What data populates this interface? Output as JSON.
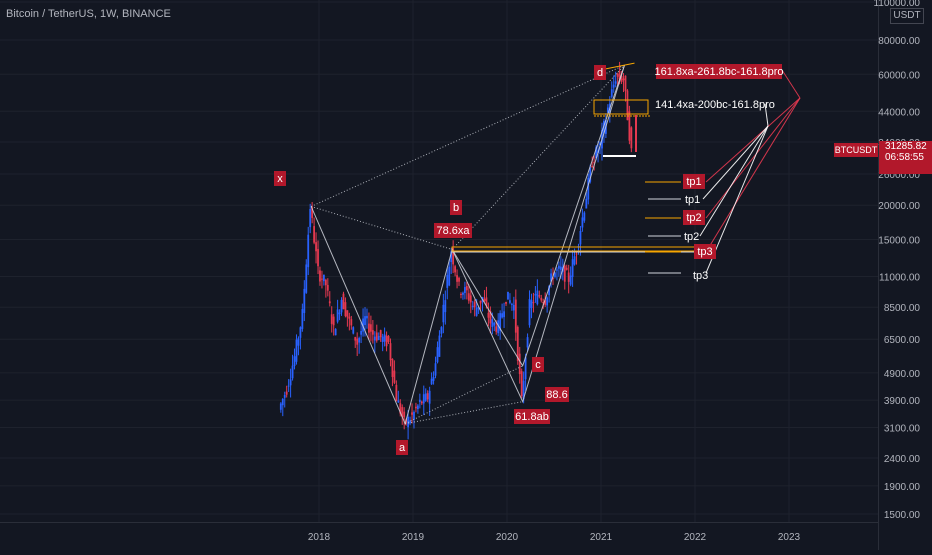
{
  "header": {
    "title": "Bitcoin / TetherUS, 1W, BINANCE"
  },
  "price_axis": {
    "currency": "USDT",
    "ticks": [
      "110000.00",
      "80000.00",
      "60000.00",
      "44000.00",
      "34000.00",
      "26000.00",
      "20000.00",
      "15000.00",
      "11000.00",
      "8500.00",
      "6500.00",
      "4900.00",
      "3900.00",
      "3100.00",
      "2400.00",
      "1900.00",
      "1500.00"
    ]
  },
  "time_axis": {
    "ticks": [
      "2018",
      "2019",
      "2020",
      "2021",
      "2022",
      "2023"
    ]
  },
  "current_price": {
    "symbol": "BTCUSDT",
    "price": "31285.82",
    "countdown": "06:58:55"
  },
  "colors": {
    "background": "#131722",
    "up": "#2962ff",
    "down": "#e53950",
    "label_bg": "#b2182b",
    "orange": "#f7a600",
    "grid": "#1e222d"
  },
  "pattern_points": {
    "x": "x",
    "a": "a",
    "b": "b",
    "c": "c",
    "d": "d",
    "b_ratio": "78.6xa",
    "c_ratio": "61.8ab",
    "c_ratio2": "88.6",
    "d_red_label": "161.8xa-261.8bc-161.8pro",
    "d_white_label": "141.4xa-200bc-161.8pro"
  },
  "targets": {
    "red": [
      "tp1",
      "tp2",
      "tp3"
    ],
    "white": [
      "tp1",
      "tp2",
      "tp3"
    ]
  },
  "chart_data": {
    "type": "candlestick",
    "title": "Bitcoin / TetherUS, 1W, BINANCE",
    "scale": "log",
    "ylim": [
      1300,
      115000
    ],
    "xlim": [
      "2017-07",
      "2023-06"
    ],
    "x_ticks": [
      "2018",
      "2019",
      "2020",
      "2021",
      "2022",
      "2023"
    ],
    "y_ticks": [
      1500,
      1900,
      2400,
      3100,
      3900,
      4900,
      6500,
      8500,
      11000,
      15000,
      20000,
      26000,
      34000,
      44000,
      60000,
      80000,
      110000
    ],
    "price_path": [
      [
        "2017-08",
        3600
      ],
      [
        "2017-09",
        4300
      ],
      [
        "2017-10",
        5600
      ],
      [
        "2017-11",
        8000
      ],
      [
        "2017-12",
        19800
      ],
      [
        "2018-01",
        11500
      ],
      [
        "2018-02",
        10300
      ],
      [
        "2018-03",
        7000
      ],
      [
        "2018-04",
        9200
      ],
      [
        "2018-05",
        7500
      ],
      [
        "2018-06",
        6300
      ],
      [
        "2018-07",
        7700
      ],
      [
        "2018-08",
        6800
      ],
      [
        "2018-09",
        6600
      ],
      [
        "2018-10",
        6300
      ],
      [
        "2018-11",
        4000
      ],
      [
        "2018-12",
        3200
      ],
      [
        "2019-01",
        3400
      ],
      [
        "2019-02",
        3800
      ],
      [
        "2019-03",
        4000
      ],
      [
        "2019-04",
        5300
      ],
      [
        "2019-05",
        8500
      ],
      [
        "2019-06",
        13800
      ],
      [
        "2019-07",
        10000
      ],
      [
        "2019-08",
        9600
      ],
      [
        "2019-09",
        8300
      ],
      [
        "2019-10",
        9200
      ],
      [
        "2019-11",
        7500
      ],
      [
        "2019-12",
        7200
      ],
      [
        "2020-01",
        9300
      ],
      [
        "2020-02",
        8600
      ],
      [
        "2020-03",
        3850
      ],
      [
        "2020-04",
        8600
      ],
      [
        "2020-05",
        9450
      ],
      [
        "2020-06",
        9100
      ],
      [
        "2020-07",
        11300
      ],
      [
        "2020-08",
        11600
      ],
      [
        "2020-09",
        10800
      ],
      [
        "2020-10",
        13800
      ],
      [
        "2020-11",
        19700
      ],
      [
        "2020-12",
        29000
      ],
      [
        "2021-01",
        33100
      ],
      [
        "2021-02",
        45000
      ],
      [
        "2021-03",
        58800
      ],
      [
        "2021-04",
        57700
      ],
      [
        "2021-05",
        31285
      ]
    ],
    "harmonic_pattern": {
      "X": {
        "date": "2017-12",
        "price": 19800
      },
      "A": {
        "date": "2018-12",
        "price": 3200
      },
      "B": {
        "date": "2019-06",
        "price": 13800
      },
      "C": {
        "date": "2020-03",
        "price": 3850
      },
      "C_alt": {
        "date": "2020-03",
        "price": 5200
      },
      "D": {
        "date": "2021-04",
        "price": 64800
      }
    },
    "target_lines": {
      "red": [
        26000,
        20000,
        13000
      ],
      "white": [
        23000,
        16000,
        11500
      ]
    },
    "last_price": 31285.82
  }
}
